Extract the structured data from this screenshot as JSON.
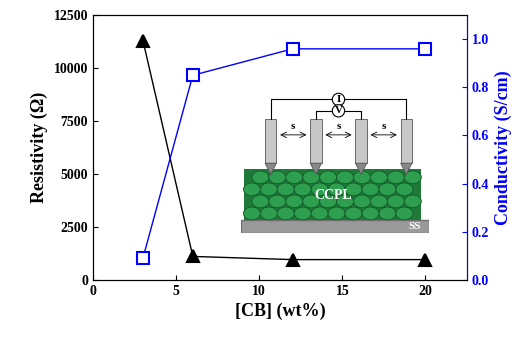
{
  "chart_data": {
    "type": "line",
    "xlabel": "[CB] (wt%)",
    "ylabel": "Resistivity (Ω)",
    "y2label": "Conductivity (S/cm)",
    "x": [
      3,
      6,
      12,
      20
    ],
    "xlim": [
      0,
      22.5
    ],
    "xticks": [
      0,
      5,
      10,
      15,
      20
    ],
    "ylim": [
      0,
      12500
    ],
    "yticks": [
      0,
      2500,
      5000,
      7500,
      10000,
      12500
    ],
    "y2lim": [
      0,
      1.1
    ],
    "y2ticks": [
      {
        "value": 0,
        "label": "0.0"
      },
      0.2,
      0.4,
      0.6,
      0.8,
      {
        "value": 1,
        "label": "1.0"
      }
    ],
    "series": [
      {
        "values": [
          11300,
          1100,
          950,
          950
        ],
        "color": "#000000",
        "marker": "triangle"
      },
      {
        "values": [
          0.09,
          0.85,
          0.96,
          0.96
        ],
        "color": "#0000ff",
        "marker": "square",
        "axis": "y2"
      }
    ]
  },
  "inset": {
    "current": "I",
    "voltage": "V",
    "spacing": "s",
    "layer": "CCPL",
    "substrate": "SS"
  }
}
